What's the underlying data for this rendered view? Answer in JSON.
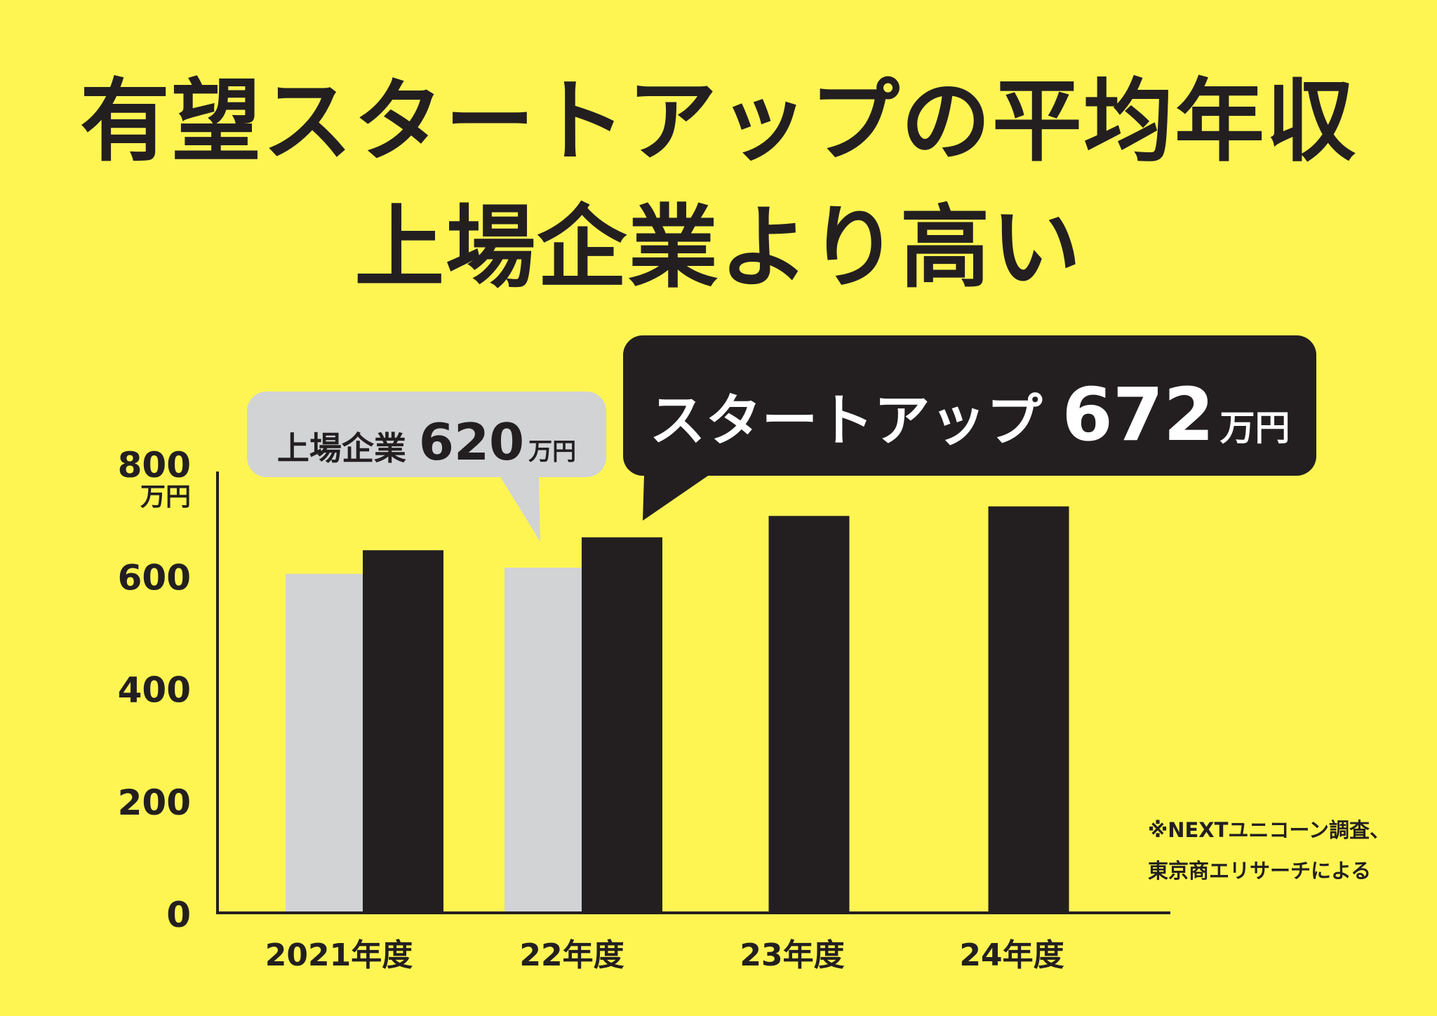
{
  "title": {
    "line1": "有望スタートアップの平均年収",
    "line2": "上場企業より高い"
  },
  "colors": {
    "background": "#fef553",
    "startup": "#231f20",
    "listed": "#d1d3d4",
    "text": "#231f20"
  },
  "callouts": {
    "listed": {
      "label": "上場企業",
      "value": "620",
      "unit": "万円"
    },
    "startup": {
      "label": "スタートアップ",
      "value": "672",
      "unit": "万円"
    }
  },
  "note": {
    "line1": "※NEXTユニコーン調査、",
    "line2": "東京商エリサーチによる"
  },
  "chart_data": {
    "type": "bar",
    "categories": [
      "2021年度",
      "22年度",
      "23年度",
      "24年度"
    ],
    "series": [
      {
        "name": "上場企業",
        "values": [
          603,
          614,
          null,
          null
        ]
      },
      {
        "name": "スタートアップ",
        "values": [
          645,
          668,
          706,
          723
        ]
      }
    ],
    "ylim": [
      0,
      800
    ],
    "yticks": [
      "0",
      "200",
      "400",
      "600",
      "800"
    ],
    "y_unit_label": "万円",
    "grid": false,
    "legend": "callouts"
  }
}
